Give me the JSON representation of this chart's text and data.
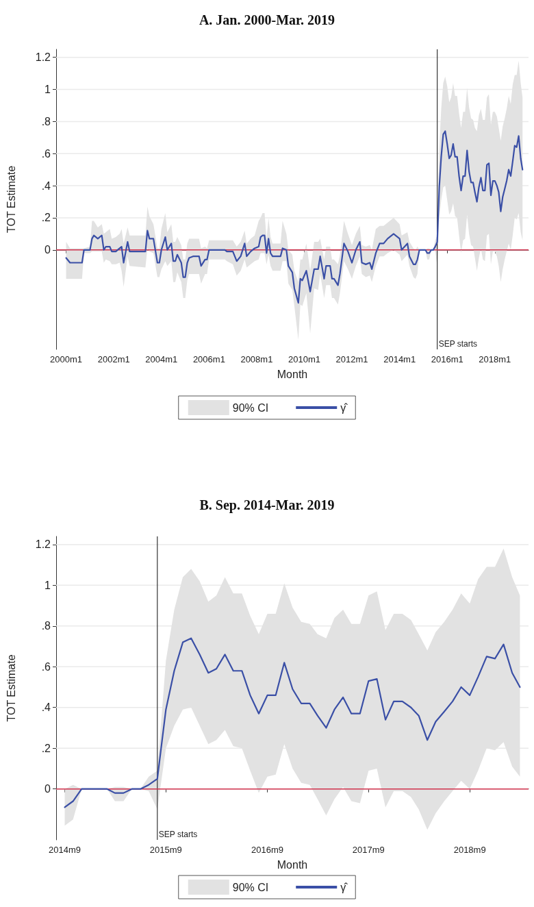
{
  "chart_data": [
    {
      "type": "line",
      "title": "A. Jan. 2000-Mar. 2019",
      "xlabel": "Month",
      "ylabel": "TOT Estimate",
      "xlim": [
        "1999-08",
        "2019-06"
      ],
      "xticks": [
        {
          "value": "2000-01",
          "label": "2000m1"
        },
        {
          "value": "2002-01",
          "label": "2002m1"
        },
        {
          "value": "2004-01",
          "label": "2004m1"
        },
        {
          "value": "2006-01",
          "label": "2006m1"
        },
        {
          "value": "2008-01",
          "label": "2008m1"
        },
        {
          "value": "2010-01",
          "label": "2010m1"
        },
        {
          "value": "2012-01",
          "label": "2012m1"
        },
        {
          "value": "2014-01",
          "label": "2014m1"
        },
        {
          "value": "2016-01",
          "label": "2016m1"
        },
        {
          "value": "2018-01",
          "label": "2018m1"
        }
      ],
      "ylim": [
        -0.62,
        1.25
      ],
      "yticks": [
        0,
        {
          "value": 0.2,
          "label": ".2"
        },
        {
          "value": 0.4,
          "label": ".4"
        },
        {
          "value": 0.6,
          "label": ".6"
        },
        {
          "value": 0.8,
          "label": ".8"
        },
        1,
        1.2
      ],
      "grid": "y",
      "legend": "bottom",
      "marker": "none",
      "line_style": "solid",
      "ref_lines": [
        {
          "axis": "x",
          "value": "2015-08",
          "label": "SEP starts",
          "color": "#333333"
        },
        {
          "axis": "y",
          "value": 0,
          "label": null,
          "color": "#d0314c"
        }
      ],
      "series": [
        {
          "name": "γ̂",
          "color": "#3a4fa6",
          "x": [
            "2000-01",
            "2000-03",
            "2000-09",
            "2000-10",
            "2001-01",
            "2001-02",
            "2001-03",
            "2001-05",
            "2001-07",
            "2001-08",
            "2001-09",
            "2001-11",
            "2001-12",
            "2002-02",
            "2002-04",
            "2002-05",
            "2002-06",
            "2002-08",
            "2002-09",
            "2003-05",
            "2003-06",
            "2003-07",
            "2003-09",
            "2003-11",
            "2003-12",
            "2004-01",
            "2004-03",
            "2004-04",
            "2004-06",
            "2004-07",
            "2004-08",
            "2004-09",
            "2004-11",
            "2004-12",
            "2005-01",
            "2005-02",
            "2005-03",
            "2005-05",
            "2005-08",
            "2005-09",
            "2005-11",
            "2005-12",
            "2006-01",
            "2006-09",
            "2006-10",
            "2007-01",
            "2007-03",
            "2007-05",
            "2007-07",
            "2007-08",
            "2007-10",
            "2007-12",
            "2008-02",
            "2008-03",
            "2008-04",
            "2008-05",
            "2008-06",
            "2008-07",
            "2008-08",
            "2008-09",
            "2009-01",
            "2009-02",
            "2009-04",
            "2009-05",
            "2009-07",
            "2009-08",
            "2009-10",
            "2009-11",
            "2009-12",
            "2010-02",
            "2010-04",
            "2010-06",
            "2010-08",
            "2010-09",
            "2010-11",
            "2010-12",
            "2011-02",
            "2011-03",
            "2011-04",
            "2011-06",
            "2011-07",
            "2011-09",
            "2011-11",
            "2012-01",
            "2012-03",
            "2012-05",
            "2012-06",
            "2012-08",
            "2012-10",
            "2012-11",
            "2013-01",
            "2013-03",
            "2013-05",
            "2013-07",
            "2013-10",
            "2014-01",
            "2014-02",
            "2014-05",
            "2014-06",
            "2014-08",
            "2014-09",
            "2014-10",
            "2014-11",
            "2014-12",
            "2015-01",
            "2015-02",
            "2015-03",
            "2015-04",
            "2015-05",
            "2015-06",
            "2015-07",
            "2015-08",
            "2015-09",
            "2015-10",
            "2015-11",
            "2015-12",
            "2016-01",
            "2016-02",
            "2016-03",
            "2016-04",
            "2016-05",
            "2016-06",
            "2016-07",
            "2016-08",
            "2016-09",
            "2016-10",
            "2016-11",
            "2016-12",
            "2017-01",
            "2017-02",
            "2017-03",
            "2017-04",
            "2017-05",
            "2017-06",
            "2017-07",
            "2017-08",
            "2017-09",
            "2017-10",
            "2017-11",
            "2017-12",
            "2018-01",
            "2018-02",
            "2018-03",
            "2018-04",
            "2018-05",
            "2018-06",
            "2018-07",
            "2018-08",
            "2018-09",
            "2018-10",
            "2018-11",
            "2018-12",
            "2019-01",
            "2019-02",
            "2019-03"
          ],
          "values": [
            -0.05,
            -0.08,
            -0.08,
            0,
            0,
            0.07,
            0.09,
            0.07,
            0.09,
            0,
            0.02,
            0.02,
            -0.01,
            -0.01,
            0.01,
            0.02,
            -0.08,
            0.05,
            -0.01,
            -0.01,
            0.12,
            0.07,
            0.07,
            -0.08,
            -0.08,
            0,
            0.08,
            0,
            0.04,
            -0.07,
            -0.07,
            -0.03,
            -0.08,
            -0.17,
            -0.17,
            -0.08,
            -0.05,
            -0.04,
            -0.04,
            -0.1,
            -0.06,
            -0.06,
            0,
            0,
            -0.01,
            -0.01,
            -0.07,
            -0.04,
            0.04,
            -0.04,
            -0.01,
            0.01,
            0.02,
            0.08,
            0.09,
            0.09,
            -0.02,
            0.07,
            -0.02,
            -0.04,
            -0.04,
            0.01,
            0,
            -0.1,
            -0.14,
            -0.24,
            -0.33,
            -0.18,
            -0.19,
            -0.13,
            -0.26,
            -0.12,
            -0.12,
            -0.04,
            -0.18,
            -0.1,
            -0.1,
            -0.18,
            -0.18,
            -0.22,
            -0.15,
            0.04,
            -0.01,
            -0.08,
            0,
            0.05,
            -0.08,
            -0.09,
            -0.08,
            -0.12,
            -0.02,
            0.04,
            0.04,
            0.07,
            0.1,
            0.07,
            0,
            0.04,
            -0.04,
            -0.09,
            -0.09,
            -0.06,
            0,
            0,
            0,
            0,
            -0.02,
            -0.02,
            0,
            0,
            0.02,
            0.05,
            0.39,
            0.58,
            0.72,
            0.74,
            0.66,
            0.57,
            0.59,
            0.66,
            0.58,
            0.58,
            0.46,
            0.37,
            0.46,
            0.46,
            0.62,
            0.49,
            0.42,
            0.42,
            0.36,
            0.3,
            0.39,
            0.45,
            0.37,
            0.37,
            0.53,
            0.54,
            0.34,
            0.43,
            0.43,
            0.4,
            0.36,
            0.24,
            0.33,
            0.38,
            0.43,
            0.5,
            0.46,
            0.55,
            0.65,
            0.64,
            0.71,
            0.57,
            0.5
          ],
          "lower": [
            -0.18,
            -0.18,
            -0.18,
            -0.02,
            -0.02,
            -0.01,
            -0.01,
            -0.01,
            -0.01,
            -0.08,
            -0.06,
            -0.07,
            -0.09,
            -0.09,
            -0.08,
            -0.13,
            -0.23,
            -0.04,
            -0.1,
            -0.11,
            0.01,
            -0.01,
            -0.02,
            -0.17,
            -0.17,
            -0.12,
            -0.07,
            -0.1,
            -0.07,
            -0.2,
            -0.2,
            -0.14,
            -0.2,
            -0.3,
            -0.3,
            -0.19,
            -0.15,
            -0.15,
            -0.15,
            -0.21,
            -0.15,
            -0.15,
            -0.06,
            -0.06,
            -0.07,
            -0.09,
            -0.16,
            -0.13,
            -0.06,
            -0.11,
            -0.09,
            -0.07,
            -0.06,
            -0.02,
            -0.02,
            -0.02,
            -0.09,
            -0.03,
            -0.1,
            -0.13,
            -0.13,
            -0.07,
            -0.07,
            -0.21,
            -0.25,
            -0.35,
            -0.56,
            -0.34,
            -0.35,
            -0.27,
            -0.52,
            -0.24,
            -0.25,
            -0.15,
            -0.3,
            -0.22,
            -0.22,
            -0.3,
            -0.3,
            -0.34,
            -0.27,
            -0.07,
            -0.12,
            -0.18,
            -0.1,
            -0.04,
            -0.15,
            -0.17,
            -0.16,
            -0.2,
            -0.1,
            -0.04,
            -0.04,
            -0.02,
            0,
            -0.03,
            -0.07,
            -0.03,
            -0.1,
            -0.17,
            -0.18,
            -0.15,
            0,
            0,
            0,
            0,
            -0.06,
            -0.06,
            0,
            0,
            -0.01,
            -0.1,
            0.2,
            0.31,
            0.39,
            0.4,
            0.31,
            0.22,
            0.24,
            0.29,
            0.21,
            0.2,
            0.09,
            -0.02,
            0.06,
            0.07,
            0.22,
            0.1,
            0.03,
            0.02,
            -0.05,
            -0.13,
            -0.05,
            0.01,
            -0.06,
            -0.07,
            0.09,
            0.1,
            -0.09,
            -0.01,
            -0.01,
            -0.04,
            -0.1,
            -0.2,
            -0.12,
            -0.06,
            -0.01,
            0.04,
            0,
            0.09,
            0.2,
            0.19,
            0.23,
            0.11,
            0.06
          ],
          "upper": [
            0.05,
            0.01,
            0.01,
            0.01,
            0.02,
            0.18,
            0.18,
            0.14,
            0.16,
            0.1,
            0.11,
            0.13,
            0.07,
            0.08,
            0.1,
            0.13,
            0.04,
            0.14,
            0.09,
            0.09,
            0.27,
            0.21,
            0.16,
            0.01,
            0.01,
            0.13,
            0.23,
            0.11,
            0.16,
            0.05,
            0.05,
            0.08,
            0.03,
            -0.06,
            -0.06,
            0.04,
            0.07,
            0.07,
            0.07,
            0.01,
            0.02,
            0.01,
            0.06,
            0.06,
            0.06,
            0.06,
            0.02,
            0.05,
            0.12,
            0.04,
            0.07,
            0.09,
            0.18,
            0.2,
            0.23,
            0.23,
            0.07,
            0.2,
            0.08,
            0.04,
            0.04,
            0.18,
            0.1,
            0,
            -0.03,
            -0.13,
            -0.2,
            -0.06,
            -0.06,
            0.04,
            -0.13,
            0.05,
            0.05,
            0.07,
            -0.06,
            0.02,
            0.02,
            -0.06,
            -0.06,
            -0.09,
            -0.03,
            0.18,
            0.1,
            0.03,
            0.1,
            0.15,
            0.03,
            0.02,
            0.03,
            0,
            0.13,
            0.15,
            0.15,
            0.17,
            0.2,
            0.16,
            0.09,
            0.11,
            0.05,
            0.01,
            0,
            0.02,
            0,
            0,
            0,
            0,
            0.01,
            0.01,
            0,
            0,
            0.06,
            0.09,
            0.63,
            0.88,
            1.04,
            1.08,
            1.02,
            0.92,
            0.95,
            1.04,
            0.96,
            0.96,
            0.85,
            0.76,
            0.86,
            0.86,
            1.01,
            0.89,
            0.82,
            0.81,
            0.76,
            0.74,
            0.84,
            0.88,
            0.81,
            0.81,
            0.95,
            0.97,
            0.78,
            0.86,
            0.86,
            0.83,
            0.76,
            0.68,
            0.77,
            0.82,
            0.88,
            0.96,
            0.91,
            1.03,
            1.09,
            1.09,
            1.18,
            1.04,
            0.95
          ]
        },
        {
          "name": "90% CI",
          "type": "area",
          "color": "#e2e2e2"
        }
      ]
    },
    {
      "type": "line",
      "title": "B. Sep. 2014-Mar. 2019",
      "xlabel": "Month",
      "ylabel": "TOT Estimate",
      "xlim": [
        "2014-08",
        "2019-04"
      ],
      "xticks": [
        {
          "value": "2014-09",
          "label": "2014m9"
        },
        {
          "value": "2015-09",
          "label": "2015m9"
        },
        {
          "value": "2016-09",
          "label": "2016m9"
        },
        {
          "value": "2017-09",
          "label": "2017m9"
        },
        {
          "value": "2018-09",
          "label": "2018m9"
        }
      ],
      "ylim": [
        -0.25,
        1.24
      ],
      "yticks": [
        0,
        {
          "value": 0.2,
          "label": ".2"
        },
        {
          "value": 0.4,
          "label": ".4"
        },
        {
          "value": 0.6,
          "label": ".6"
        },
        {
          "value": 0.8,
          "label": ".8"
        },
        1,
        1.2
      ],
      "grid": "y",
      "legend": "bottom",
      "marker": "none",
      "line_style": "solid",
      "ref_lines": [
        {
          "axis": "x",
          "value": "2015-08",
          "label": "SEP starts",
          "color": "#333333"
        },
        {
          "axis": "y",
          "value": 0,
          "label": null,
          "color": "#d0314c"
        }
      ],
      "series": [
        {
          "name": "γ̂",
          "color": "#3a4fa6",
          "x": [
            "2014-09",
            "2014-10",
            "2014-11",
            "2014-12",
            "2015-01",
            "2015-02",
            "2015-03",
            "2015-04",
            "2015-05",
            "2015-06",
            "2015-07",
            "2015-08",
            "2015-09",
            "2015-10",
            "2015-11",
            "2015-12",
            "2016-01",
            "2016-02",
            "2016-03",
            "2016-04",
            "2016-05",
            "2016-06",
            "2016-07",
            "2016-08",
            "2016-09",
            "2016-10",
            "2016-11",
            "2016-12",
            "2017-01",
            "2017-02",
            "2017-03",
            "2017-04",
            "2017-05",
            "2017-06",
            "2017-07",
            "2017-08",
            "2017-09",
            "2017-10",
            "2017-11",
            "2017-12",
            "2018-01",
            "2018-02",
            "2018-03",
            "2018-04",
            "2018-05",
            "2018-06",
            "2018-07",
            "2018-08",
            "2018-09",
            "2018-10",
            "2018-11",
            "2018-12",
            "2019-01",
            "2019-02",
            "2019-03"
          ],
          "values": [
            -0.09,
            -0.06,
            0,
            0,
            0,
            0,
            -0.02,
            -0.02,
            0,
            0,
            0.02,
            0.05,
            0.39,
            0.58,
            0.72,
            0.74,
            0.66,
            0.57,
            0.59,
            0.66,
            0.58,
            0.58,
            0.46,
            0.37,
            0.46,
            0.46,
            0.62,
            0.49,
            0.42,
            0.42,
            0.36,
            0.3,
            0.39,
            0.45,
            0.37,
            0.37,
            0.53,
            0.54,
            0.34,
            0.43,
            0.43,
            0.4,
            0.36,
            0.24,
            0.33,
            0.38,
            0.43,
            0.5,
            0.46,
            0.55,
            0.65,
            0.64,
            0.71,
            0.57,
            0.5
          ],
          "lower": [
            -0.18,
            -0.15,
            0,
            0,
            0,
            0,
            -0.06,
            -0.06,
            0,
            0,
            -0.01,
            -0.1,
            0.2,
            0.31,
            0.39,
            0.4,
            0.31,
            0.22,
            0.24,
            0.29,
            0.21,
            0.2,
            0.09,
            -0.02,
            0.06,
            0.07,
            0.22,
            0.1,
            0.03,
            0.02,
            -0.05,
            -0.13,
            -0.05,
            0.01,
            -0.06,
            -0.07,
            0.09,
            0.1,
            -0.09,
            -0.01,
            -0.01,
            -0.04,
            -0.1,
            -0.2,
            -0.12,
            -0.06,
            -0.01,
            0.04,
            0,
            0.09,
            0.2,
            0.19,
            0.23,
            0.11,
            0.06
          ],
          "upper": [
            0,
            0.02,
            0,
            0,
            0,
            0,
            0.01,
            0.01,
            0,
            0,
            0.06,
            0.09,
            0.63,
            0.88,
            1.04,
            1.08,
            1.02,
            0.92,
            0.95,
            1.04,
            0.96,
            0.96,
            0.85,
            0.76,
            0.86,
            0.86,
            1.01,
            0.89,
            0.82,
            0.81,
            0.76,
            0.74,
            0.84,
            0.88,
            0.81,
            0.81,
            0.95,
            0.97,
            0.78,
            0.86,
            0.86,
            0.83,
            0.76,
            0.68,
            0.77,
            0.82,
            0.88,
            0.96,
            0.91,
            1.03,
            1.09,
            1.09,
            1.18,
            1.04,
            0.95
          ]
        },
        {
          "name": "90% CI",
          "type": "area",
          "color": "#e2e2e2"
        }
      ]
    }
  ]
}
